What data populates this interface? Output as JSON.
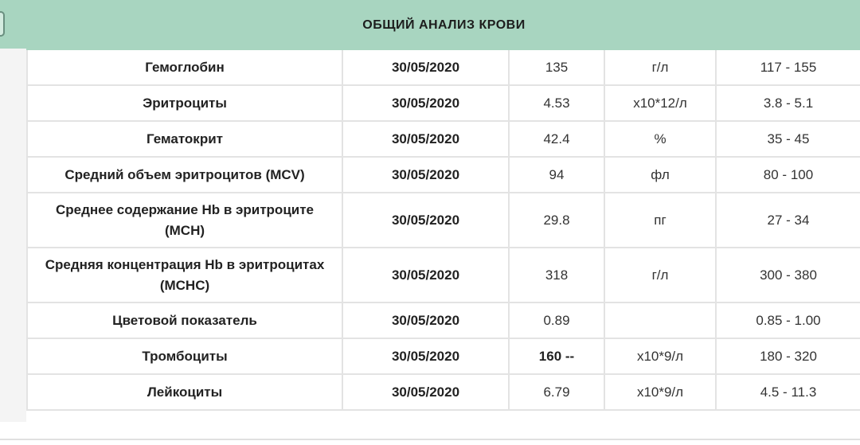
{
  "report": {
    "title": "ОБЩИЙ АНАЛИЗ КРОВИ",
    "rows": [
      {
        "name": "Гемоглобин",
        "date": "30/05/2020",
        "value": "135",
        "unit": "г/л",
        "ref": "117 - 155"
      },
      {
        "name": "Эритроциты",
        "date": "30/05/2020",
        "value": "4.53",
        "unit": "х10*12/л",
        "ref": "3.8 - 5.1"
      },
      {
        "name": "Гематокрит",
        "date": "30/05/2020",
        "value": "42.4",
        "unit": "%",
        "ref": "35 - 45"
      },
      {
        "name": "Средний объем эритроцитов (MCV)",
        "date": "30/05/2020",
        "value": "94",
        "unit": "фл",
        "ref": "80 - 100"
      },
      {
        "name": "Среднее содержание Hb в эритроците (MCH)",
        "date": "30/05/2020",
        "value": "29.8",
        "unit": "пг",
        "ref": "27 - 34"
      },
      {
        "name": "Средняя концентрация Hb в эритроцитах (MCHC)",
        "date": "30/05/2020",
        "value": "318",
        "unit": "г/л",
        "ref": "300 - 380"
      },
      {
        "name": "Цветовой показатель",
        "date": "30/05/2020",
        "value": "0.89",
        "unit": "",
        "ref": "0.85 - 1.00"
      },
      {
        "name": "Тромбоциты",
        "date": "30/05/2020",
        "value": "160 --",
        "unit": "х10*9/л",
        "ref": "180 - 320"
      },
      {
        "name": "Лейкоциты",
        "date": "30/05/2020",
        "value": "6.79",
        "unit": "х10*9/л",
        "ref": "4.5 - 11.3"
      }
    ]
  }
}
